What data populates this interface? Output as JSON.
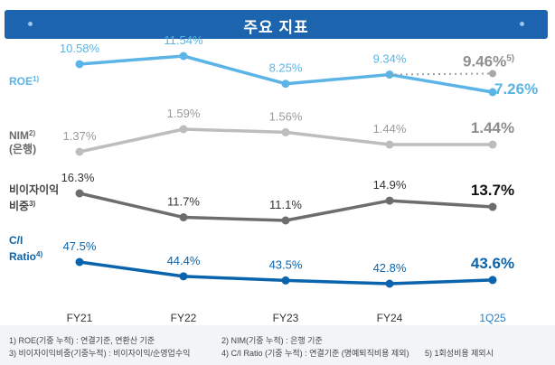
{
  "header": {
    "title": "주요 지표"
  },
  "chart_data": {
    "type": "line",
    "categories": [
      "FY21",
      "FY22",
      "FY23",
      "FY24",
      "1Q25"
    ],
    "series": [
      {
        "key": "roe",
        "name": "ROE",
        "name_sup": "1)",
        "values": [
          10.58,
          11.54,
          8.25,
          9.34,
          7.26
        ],
        "labels": [
          "10.58%",
          "11.54%",
          "8.25%",
          "9.34%",
          "7.26%"
        ],
        "color": "#5ab4e5",
        "extra": {
          "value": 9.46,
          "label": "9.46%",
          "sup": "5)",
          "color": "#909090"
        }
      },
      {
        "key": "nim",
        "name": "NIM",
        "name_sup": "2)",
        "name_sub": "(은행)",
        "values": [
          1.37,
          1.59,
          1.56,
          1.44,
          1.44
        ],
        "labels": [
          "1.37%",
          "1.59%",
          "1.56%",
          "1.44%",
          "1.44%"
        ],
        "color": "#bdbdbd"
      },
      {
        "key": "nonint",
        "name": "비이자이익",
        "name_sub": "비중",
        "name_sup": "3)",
        "values": [
          16.3,
          11.7,
          11.1,
          14.9,
          13.7
        ],
        "labels": [
          "16.3%",
          "11.7%",
          "11.1%",
          "14.9%",
          "13.7%"
        ],
        "color": "#6d6d6d"
      },
      {
        "key": "ci",
        "name": "C/I",
        "name_sub": "Ratio",
        "name_sup": "4)",
        "values": [
          47.5,
          44.4,
          43.5,
          42.8,
          43.6
        ],
        "labels": [
          "47.5%",
          "44.4%",
          "43.5%",
          "42.8%",
          "43.6%"
        ],
        "color": "#0a64ad"
      }
    ]
  },
  "footnotes": {
    "f1": "1) ROE(기중 누적) : 연결기준, 연환산 기준",
    "f2": "2) NIM(기중 누적) : 은행 기준",
    "f3": "3) 비이자이익비중(기중누적) : 비이자이익/순영업수익",
    "f4": "4) C/I Ratio (기중 누적) : 연결기준 (명예퇴직비용 제외)",
    "f5": "5) 1회성비용 제외시"
  }
}
